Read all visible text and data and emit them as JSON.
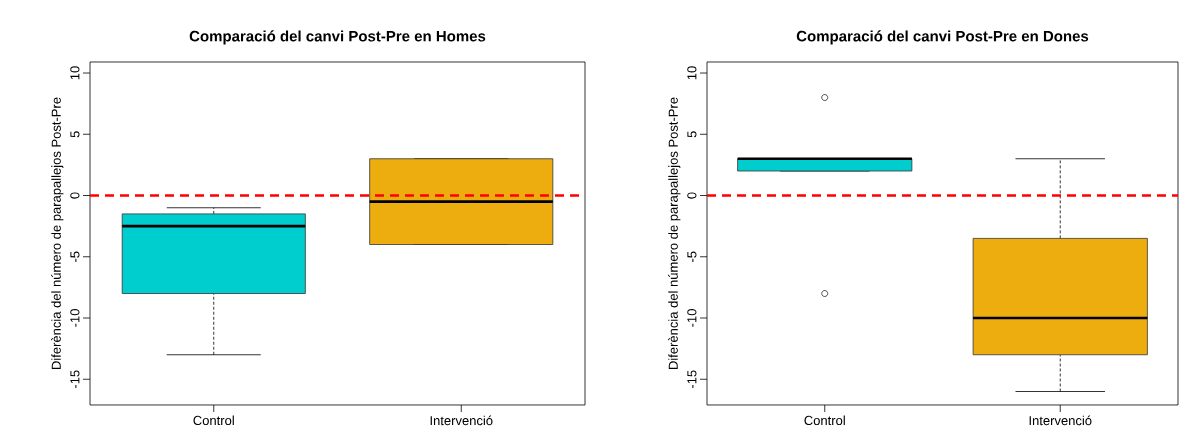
{
  "chart_data": [
    {
      "type": "box",
      "title": "Comparació del canvi Post-Pre en Homes",
      "ylabel": "Diferència del número de parapallejos Post-Pre",
      "categories": [
        "Control",
        "Intervenció"
      ],
      "colors": [
        "#00cdcd",
        "#eead0e"
      ],
      "boxes": [
        {
          "low": -13,
          "q1": -8,
          "median": -2.5,
          "q3": -1.5,
          "high": -1
        },
        {
          "low": -4,
          "q1": -4,
          "median": -0.5,
          "q3": 3,
          "high": 3
        }
      ],
      "ylim": [
        -17.1,
        10.9
      ],
      "yticks": [
        -15,
        -10,
        -5,
        0,
        5,
        10
      ],
      "ref_lines": [
        {
          "axis": "y",
          "value": 0,
          "color": "#ff0000",
          "line_style": "dashed"
        }
      ]
    },
    {
      "type": "box",
      "title": "Comparació del canvi Post-Pre en Dones",
      "ylabel": "Diferència del número de parapallejos Post-Pre",
      "categories": [
        "Control",
        "Intervenció"
      ],
      "colors": [
        "#00cdcd",
        "#eead0e"
      ],
      "boxes": [
        {
          "low": 2,
          "q1": 2,
          "median": 3,
          "q3": 3,
          "high": 3,
          "outliers": [
            8,
            -8
          ]
        },
        {
          "low": -16,
          "q1": -13,
          "median": -10,
          "q3": -3.5,
          "high": 3
        }
      ],
      "ylim": [
        -17.1,
        10.9
      ],
      "yticks": [
        -15,
        -10,
        -5,
        0,
        5,
        10
      ],
      "ref_lines": [
        {
          "axis": "y",
          "value": 0,
          "color": "#ff0000",
          "line_style": "dashed"
        }
      ]
    }
  ]
}
